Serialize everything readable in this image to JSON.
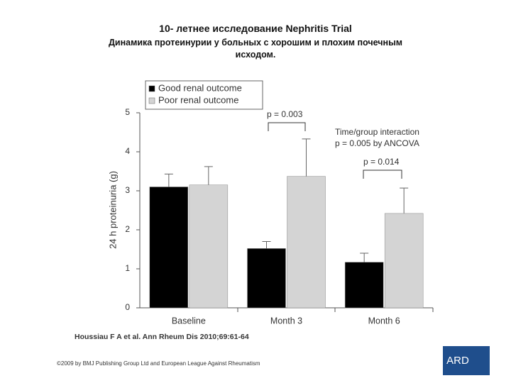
{
  "slide": {
    "title": "10- летнее исследование Nephritis Trial",
    "subtitle": "Динамика протеинурии у больных с хорошим и плохим почечным исходом.",
    "citation": "Houssiau F A et al. Ann Rheum Dis 2010;69:61-64",
    "copyright": "©2009 by BMJ Publishing Group Ltd and European League Against Rheumatism",
    "logo": "ARD"
  },
  "chart_data": {
    "type": "bar",
    "y_label": "24 h proteinuria (g)",
    "categories": [
      "Baseline",
      "Month 3",
      "Month 6"
    ],
    "series": [
      {
        "name": "Good renal outcome",
        "color": "#000000",
        "values": [
          3.1,
          1.52,
          1.17
        ],
        "errors": [
          0.33,
          0.18,
          0.23
        ]
      },
      {
        "name": "Poor renal outcome",
        "color": "#d4d4d4",
        "values": [
          3.15,
          3.37,
          2.42
        ],
        "errors": [
          0.47,
          0.96,
          0.65
        ]
      }
    ],
    "ylim": [
      0,
      5
    ],
    "yticks": [
      0,
      1,
      2,
      3,
      4,
      5
    ],
    "grid": false,
    "legend": "top-left",
    "annotations": [
      "p = 0.003",
      "Time/group interaction",
      "p = 0.005 by ANCOVA",
      "p = 0.014"
    ]
  }
}
